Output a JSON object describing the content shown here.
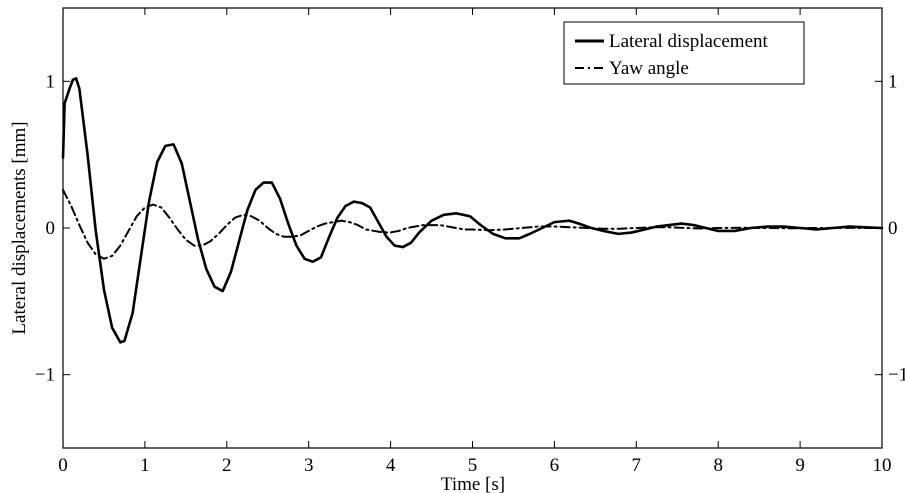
{
  "chart_data": {
    "type": "line",
    "title": "",
    "xlabel": "Time [s]",
    "ylabel": "Lateral displacements [mm]",
    "xlim": [
      0,
      10
    ],
    "ylim": [
      -1.5,
      1.5
    ],
    "xticks": [
      "0",
      "1",
      "2",
      "3",
      "4",
      "5",
      "6",
      "7",
      "8",
      "9",
      "10"
    ],
    "yticks": [
      "−1",
      "0",
      "1"
    ],
    "yticks_right": [
      "−1",
      "0",
      "1"
    ],
    "grid": false,
    "legend_position": "top-right",
    "series": [
      {
        "name": "Lateral displacement",
        "style": "solid",
        "color": "#000000",
        "x": [
          0,
          0.02,
          0.05,
          0.08,
          0.12,
          0.16,
          0.2,
          0.3,
          0.4,
          0.5,
          0.6,
          0.7,
          0.75,
          0.85,
          0.95,
          1.05,
          1.15,
          1.25,
          1.35,
          1.45,
          1.55,
          1.65,
          1.75,
          1.85,
          1.95,
          2.05,
          2.15,
          2.25,
          2.35,
          2.45,
          2.55,
          2.65,
          2.75,
          2.85,
          2.95,
          3.05,
          3.15,
          3.25,
          3.35,
          3.45,
          3.55,
          3.65,
          3.75,
          3.85,
          3.95,
          4.05,
          4.15,
          4.25,
          4.35,
          4.5,
          4.65,
          4.8,
          4.97,
          5.1,
          5.25,
          5.4,
          5.57,
          5.7,
          5.85,
          6.0,
          6.18,
          6.3,
          6.45,
          6.6,
          6.78,
          6.95,
          7.1,
          7.25,
          7.4,
          7.55,
          7.7,
          7.85,
          8.0,
          8.2,
          8.4,
          8.6,
          8.8,
          9.0,
          9.2,
          9.4,
          9.6,
          9.8,
          10.0
        ],
        "y": [
          0.48,
          0.85,
          0.9,
          0.95,
          1.01,
          1.02,
          0.95,
          0.5,
          -0.02,
          -0.42,
          -0.68,
          -0.78,
          -0.77,
          -0.58,
          -0.2,
          0.18,
          0.45,
          0.56,
          0.57,
          0.44,
          0.18,
          -0.08,
          -0.28,
          -0.4,
          -0.43,
          -0.3,
          -0.09,
          0.12,
          0.26,
          0.31,
          0.31,
          0.2,
          0.03,
          -0.12,
          -0.21,
          -0.23,
          -0.2,
          -0.06,
          0.07,
          0.15,
          0.18,
          0.17,
          0.14,
          0.04,
          -0.06,
          -0.12,
          -0.13,
          -0.1,
          -0.03,
          0.05,
          0.09,
          0.1,
          0.08,
          0.02,
          -0.04,
          -0.07,
          -0.07,
          -0.04,
          0.0,
          0.04,
          0.05,
          0.03,
          0.0,
          -0.02,
          -0.04,
          -0.03,
          -0.01,
          0.01,
          0.02,
          0.03,
          0.02,
          0.0,
          -0.02,
          -0.02,
          0.0,
          0.01,
          0.01,
          0.0,
          -0.01,
          0.0,
          0.01,
          0.005,
          0.0
        ]
      },
      {
        "name": "Yaw angle",
        "style": "dash-dot",
        "color": "#000000",
        "x": [
          0,
          0.1,
          0.2,
          0.3,
          0.4,
          0.5,
          0.6,
          0.7,
          0.8,
          0.9,
          1.0,
          1.1,
          1.2,
          1.3,
          1.4,
          1.5,
          1.6,
          1.7,
          1.8,
          1.9,
          2.0,
          2.1,
          2.2,
          2.3,
          2.4,
          2.5,
          2.6,
          2.7,
          2.8,
          2.9,
          3.0,
          3.1,
          3.2,
          3.3,
          3.4,
          3.5,
          3.6,
          3.7,
          3.8,
          3.9,
          4.0,
          4.1,
          4.2,
          4.3,
          4.4,
          4.5,
          4.6,
          4.7,
          4.8,
          4.9,
          5.0,
          5.2,
          5.4,
          5.6,
          5.8,
          6.0,
          6.2,
          6.4,
          6.6,
          6.8,
          7.0,
          7.2,
          7.4,
          7.6,
          7.8,
          8.0,
          8.3,
          8.6,
          8.9,
          9.2,
          9.5,
          9.8,
          10.0
        ],
        "y": [
          0.26,
          0.15,
          0.02,
          -0.1,
          -0.18,
          -0.21,
          -0.19,
          -0.12,
          -0.02,
          0.08,
          0.14,
          0.16,
          0.14,
          0.07,
          -0.01,
          -0.08,
          -0.12,
          -0.12,
          -0.09,
          -0.04,
          0.02,
          0.07,
          0.09,
          0.08,
          0.05,
          0.0,
          -0.04,
          -0.06,
          -0.06,
          -0.05,
          -0.02,
          0.01,
          0.03,
          0.04,
          0.05,
          0.04,
          0.02,
          -0.01,
          -0.02,
          -0.03,
          -0.03,
          -0.02,
          0.0,
          0.01,
          0.02,
          0.02,
          0.02,
          0.01,
          0.0,
          -0.01,
          -0.01,
          -0.015,
          -0.01,
          0.0,
          0.01,
          0.01,
          0.005,
          0.0,
          -0.005,
          -0.005,
          0.0,
          0.005,
          0.005,
          0.0,
          -0.003,
          0.0,
          0.002,
          0.0,
          -0.002,
          0.0,
          0.001,
          0.0,
          0.0
        ]
      }
    ]
  }
}
